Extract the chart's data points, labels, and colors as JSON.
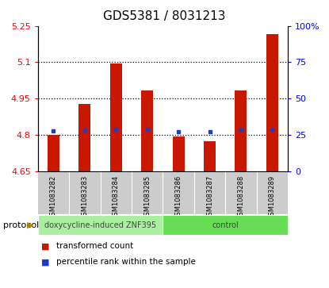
{
  "title": "GDS5381 / 8031213",
  "samples": [
    "GSM1083282",
    "GSM1083283",
    "GSM1083284",
    "GSM1083285",
    "GSM1083286",
    "GSM1083287",
    "GSM1083288",
    "GSM1083289"
  ],
  "transformed_count": [
    4.8,
    4.928,
    5.095,
    4.985,
    4.795,
    4.775,
    4.985,
    5.215
  ],
  "percentile_rank": [
    4.816,
    4.82,
    4.822,
    4.822,
    4.815,
    4.815,
    4.822,
    4.824
  ],
  "bar_bottom": 4.65,
  "ylim_left": [
    4.65,
    5.25
  ],
  "ylim_right": [
    0,
    100
  ],
  "yticks_left": [
    4.65,
    4.8,
    4.95,
    5.1,
    5.25
  ],
  "yticks_right": [
    0,
    25,
    50,
    75,
    100
  ],
  "ytick_labels_left": [
    "4.65",
    "4.8",
    "4.95",
    "5.1",
    "5.25"
  ],
  "ytick_labels_right": [
    "0",
    "25",
    "50",
    "75",
    "100%"
  ],
  "bar_color": "#c81800",
  "marker_color": "#1a3dcc",
  "dotted_lines": [
    4.8,
    4.95,
    5.1
  ],
  "label_area_bg": "#cccccc",
  "protocol_groups": [
    {
      "label": "doxycycline-induced ZNF395",
      "start": 0,
      "end": 4,
      "color": "#aaeea0"
    },
    {
      "label": "control",
      "start": 4,
      "end": 8,
      "color": "#66dd55"
    }
  ],
  "protocol_label": "protocol",
  "legend_items": [
    {
      "color": "#c81800",
      "label": "transformed count"
    },
    {
      "color": "#1a3dcc",
      "label": "percentile rank within the sample"
    }
  ],
  "title_fontsize": 11,
  "tick_fontsize": 8,
  "sample_fontsize": 6,
  "proto_fontsize": 7,
  "legend_fontsize": 7.5
}
